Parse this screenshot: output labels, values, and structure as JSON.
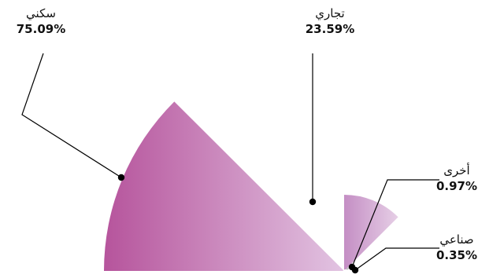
{
  "chart_data": {
    "type": "pie",
    "variant": "half-rose",
    "legend": "none",
    "series": [
      {
        "label": "سكني",
        "value": 75.09,
        "value_label": "75.09%",
        "color_from": "#b6549c",
        "color_to": "#e2c4e2"
      },
      {
        "label": "تجاري",
        "value": 23.59,
        "value_label": "23.59%",
        "color_from": "#c48ec4",
        "color_to": "#e6cfe6"
      },
      {
        "label": "أخرى",
        "value": 0.97,
        "value_label": "0.97%",
        "color_from": "#a7a7a7",
        "color_to": "#d2d2d2"
      },
      {
        "label": "صناعي",
        "value": 0.35,
        "value_label": "0.35%",
        "color_from": "#d6b5d6",
        "color_to": "#ecdcec"
      }
    ]
  }
}
